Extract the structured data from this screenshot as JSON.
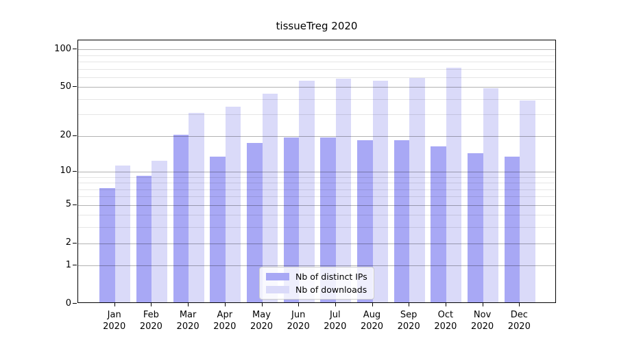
{
  "title": "tissueTreg 2020",
  "legend": {
    "items": [
      {
        "key": "ips",
        "label": "Nb of distinct IPs"
      },
      {
        "key": "downloads",
        "label": "Nb of downloads"
      }
    ]
  },
  "colors": {
    "ips": "#a8a8f5",
    "downloads": "#dadaf9",
    "grid_major": "rgba(0,0,0,0.30)",
    "grid_minor": "rgba(0,0,0,0.10)",
    "axis": "#000000",
    "text": "#000000"
  },
  "chart_data": {
    "type": "bar",
    "title": "tissueTreg 2020",
    "categories": [
      "Jan",
      "Feb",
      "Mar",
      "Apr",
      "May",
      "Jun",
      "Jul",
      "Aug",
      "Sep",
      "Oct",
      "Nov",
      "Dec"
    ],
    "category_year": "2020",
    "series": [
      {
        "name": "Nb of distinct IPs",
        "key": "ips",
        "values": [
          7,
          9,
          20,
          13,
          17,
          19,
          19,
          18,
          18,
          16,
          14,
          13
        ]
      },
      {
        "name": "Nb of downloads",
        "key": "downloads",
        "values": [
          11,
          12,
          30,
          34,
          43,
          55,
          57,
          55,
          58,
          70,
          48,
          38
        ]
      }
    ],
    "y_scale": "log10(1+y)",
    "y_major_ticks": [
      0,
      1,
      2,
      5,
      10,
      20,
      50,
      100
    ],
    "y_minor_gridlines": [
      3,
      4,
      6,
      7,
      8,
      9,
      30,
      40,
      60,
      70,
      80,
      90
    ],
    "ylim": [
      0,
      118
    ],
    "xlabel": "",
    "ylabel": "",
    "grid": "horizontal",
    "legend_position": "lower-center-inside"
  }
}
